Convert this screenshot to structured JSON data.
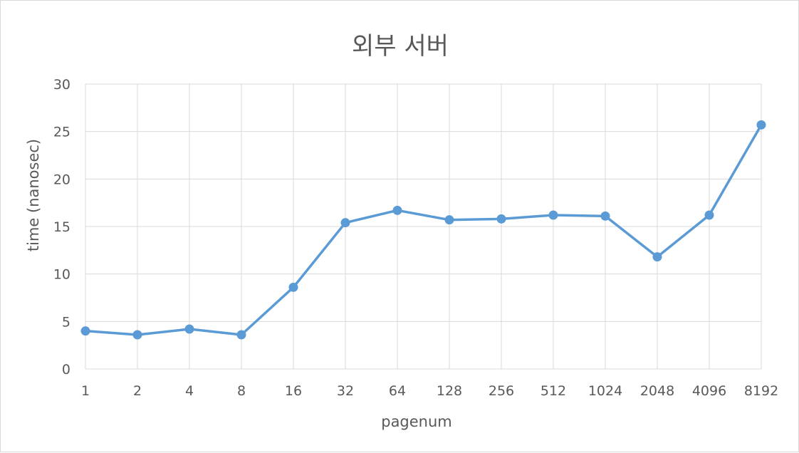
{
  "chart_data": {
    "type": "line",
    "title": "외부 서버",
    "xlabel": "pagenum",
    "ylabel": "time (nanosec)",
    "categories": [
      "1",
      "2",
      "4",
      "8",
      "16",
      "32",
      "64",
      "128",
      "256",
      "512",
      "1024",
      "2048",
      "4096",
      "8192"
    ],
    "series": [
      {
        "values": [
          4.0,
          3.6,
          4.2,
          3.6,
          8.6,
          15.4,
          16.7,
          15.7,
          15.8,
          16.2,
          16.1,
          11.8,
          16.2,
          25.7
        ]
      }
    ],
    "ylim": [
      0,
      30
    ],
    "yticks": [
      0,
      5,
      10,
      15,
      20,
      25,
      30
    ],
    "grid": true,
    "legend": "none",
    "colors": {
      "line": "#5b9bd5",
      "grid": "#d9d9d9",
      "text": "#595959"
    }
  }
}
